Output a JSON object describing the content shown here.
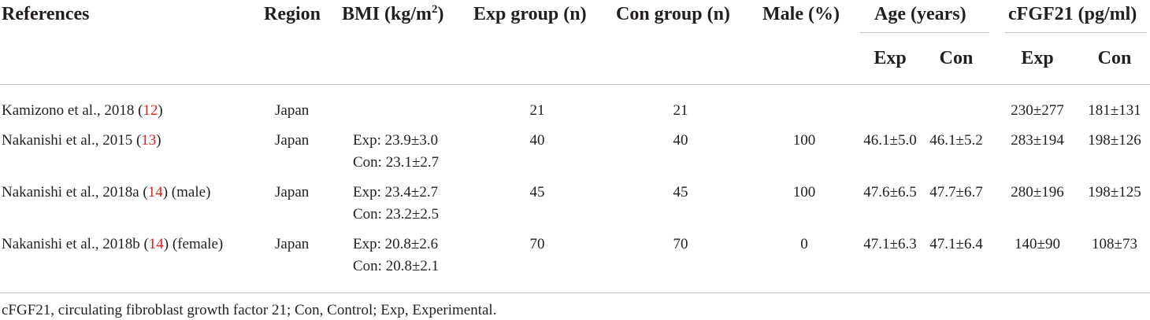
{
  "table": {
    "headers": {
      "references": "References",
      "region": "Region",
      "bmi_prefix": "BMI (kg/m",
      "bmi_sup": "2",
      "bmi_suffix": ")",
      "exp_group": "Exp group (n)",
      "con_group": "Con group (n)",
      "male": "Male (%)",
      "age": "Age (years)",
      "cfgf21": "cFGF21 (pg/ml)",
      "age_exp": "Exp",
      "age_con": "Con",
      "cfgf_exp": "Exp",
      "cfgf_con": "Con"
    },
    "rows": [
      {
        "ref_text": "Kamizono et al., 2018 (",
        "ref_num": "12",
        "ref_close": ")",
        "region": "Japan",
        "bmi_exp": "",
        "bmi_con": "",
        "exp_n": "21",
        "con_n": "21",
        "male": "",
        "age_exp": "",
        "age_con": "",
        "cfgf_exp": "230±277",
        "cfgf_con": "181±131"
      },
      {
        "ref_text": "Nakanishi et al., 2015 (",
        "ref_num": "13",
        "ref_close": ")",
        "region": "Japan",
        "bmi_exp": "Exp: 23.9±3.0",
        "bmi_con": "Con: 23.1±2.7",
        "exp_n": "40",
        "con_n": "40",
        "male": "100",
        "age_exp": "46.1±5.0",
        "age_con": "46.1±5.2",
        "cfgf_exp": "283±194",
        "cfgf_con": "198±126"
      },
      {
        "ref_text": "Nakanishi et al., 2018a (",
        "ref_num": "14",
        "ref_close": ") (male)",
        "region": "Japan",
        "bmi_exp": "Exp: 23.4±2.7",
        "bmi_con": "Con: 23.2±2.5",
        "exp_n": "45",
        "con_n": "45",
        "male": "100",
        "age_exp": "47.6±6.5",
        "age_con": "47.7±6.7",
        "cfgf_exp": "280±196",
        "cfgf_con": "198±125"
      },
      {
        "ref_text": "Nakanishi et al., 2018b (",
        "ref_num": "14",
        "ref_close": ") (female)",
        "region": "Japan",
        "bmi_exp": "Exp: 20.8±2.6",
        "bmi_con": "Con: 20.8±2.1",
        "exp_n": "70",
        "con_n": "70",
        "male": "0",
        "age_exp": "47.1±6.3",
        "age_con": "47.1±6.4",
        "cfgf_exp": "140±90",
        "cfgf_con": "108±73"
      }
    ],
    "footnote": "cFGF21, circulating fibroblast growth factor 21; Con, Control; Exp, Experimental."
  },
  "colors": {
    "text": "#231f20",
    "reference_link": "#e8201f",
    "rule": "#c8c8c8"
  }
}
